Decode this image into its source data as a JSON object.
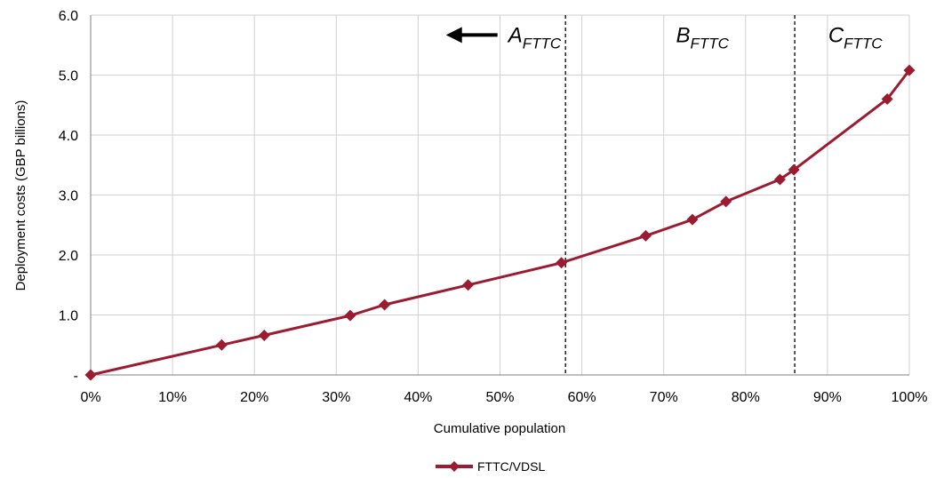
{
  "chart_data": {
    "type": "line",
    "title": "",
    "xlabel": "Cumulative population",
    "ylabel": "Deployment costs (GBP billions)",
    "xlim": [
      0,
      100
    ],
    "ylim": [
      0,
      6
    ],
    "x_ticks": [
      0,
      10,
      20,
      30,
      40,
      50,
      60,
      70,
      80,
      90,
      100
    ],
    "x_tick_labels": [
      "0%",
      "10%",
      "20%",
      "30%",
      "40%",
      "50%",
      "60%",
      "70%",
      "80%",
      "90%",
      "100%"
    ],
    "y_ticks": [
      0,
      1,
      2,
      3,
      4,
      5,
      6
    ],
    "y_tick_labels": [
      "-",
      "1.0",
      "2.0",
      "3.0",
      "4.0",
      "5.0",
      "6.0"
    ],
    "grid": true,
    "legend_position": "bottom-center",
    "series": [
      {
        "name": "FTTC/VDSL",
        "color": "#9b1b30",
        "marker": "diamond",
        "x": [
          0,
          16,
          21.2,
          31.7,
          35.9,
          46.1,
          57.5,
          67.8,
          73.5,
          77.6,
          84.2,
          85.9,
          97.3,
          100
        ],
        "y": [
          0,
          0.5,
          0.66,
          0.99,
          1.17,
          1.5,
          1.87,
          2.32,
          2.59,
          2.89,
          3.26,
          3.42,
          4.6,
          5.08
        ]
      }
    ],
    "dividers": [
      {
        "x": 58,
        "style": "dashed"
      },
      {
        "x": 86,
        "style": "dashed"
      }
    ],
    "annotations": [
      {
        "main": "A",
        "sub": "FTTC",
        "x": 51,
        "y": 5.55,
        "arrow": "left"
      },
      {
        "main": "B",
        "sub": "FTTC",
        "x": 71.5,
        "y": 5.55
      },
      {
        "main": "C",
        "sub": "FTTC",
        "x": 90.1,
        "y": 5.55
      }
    ]
  }
}
